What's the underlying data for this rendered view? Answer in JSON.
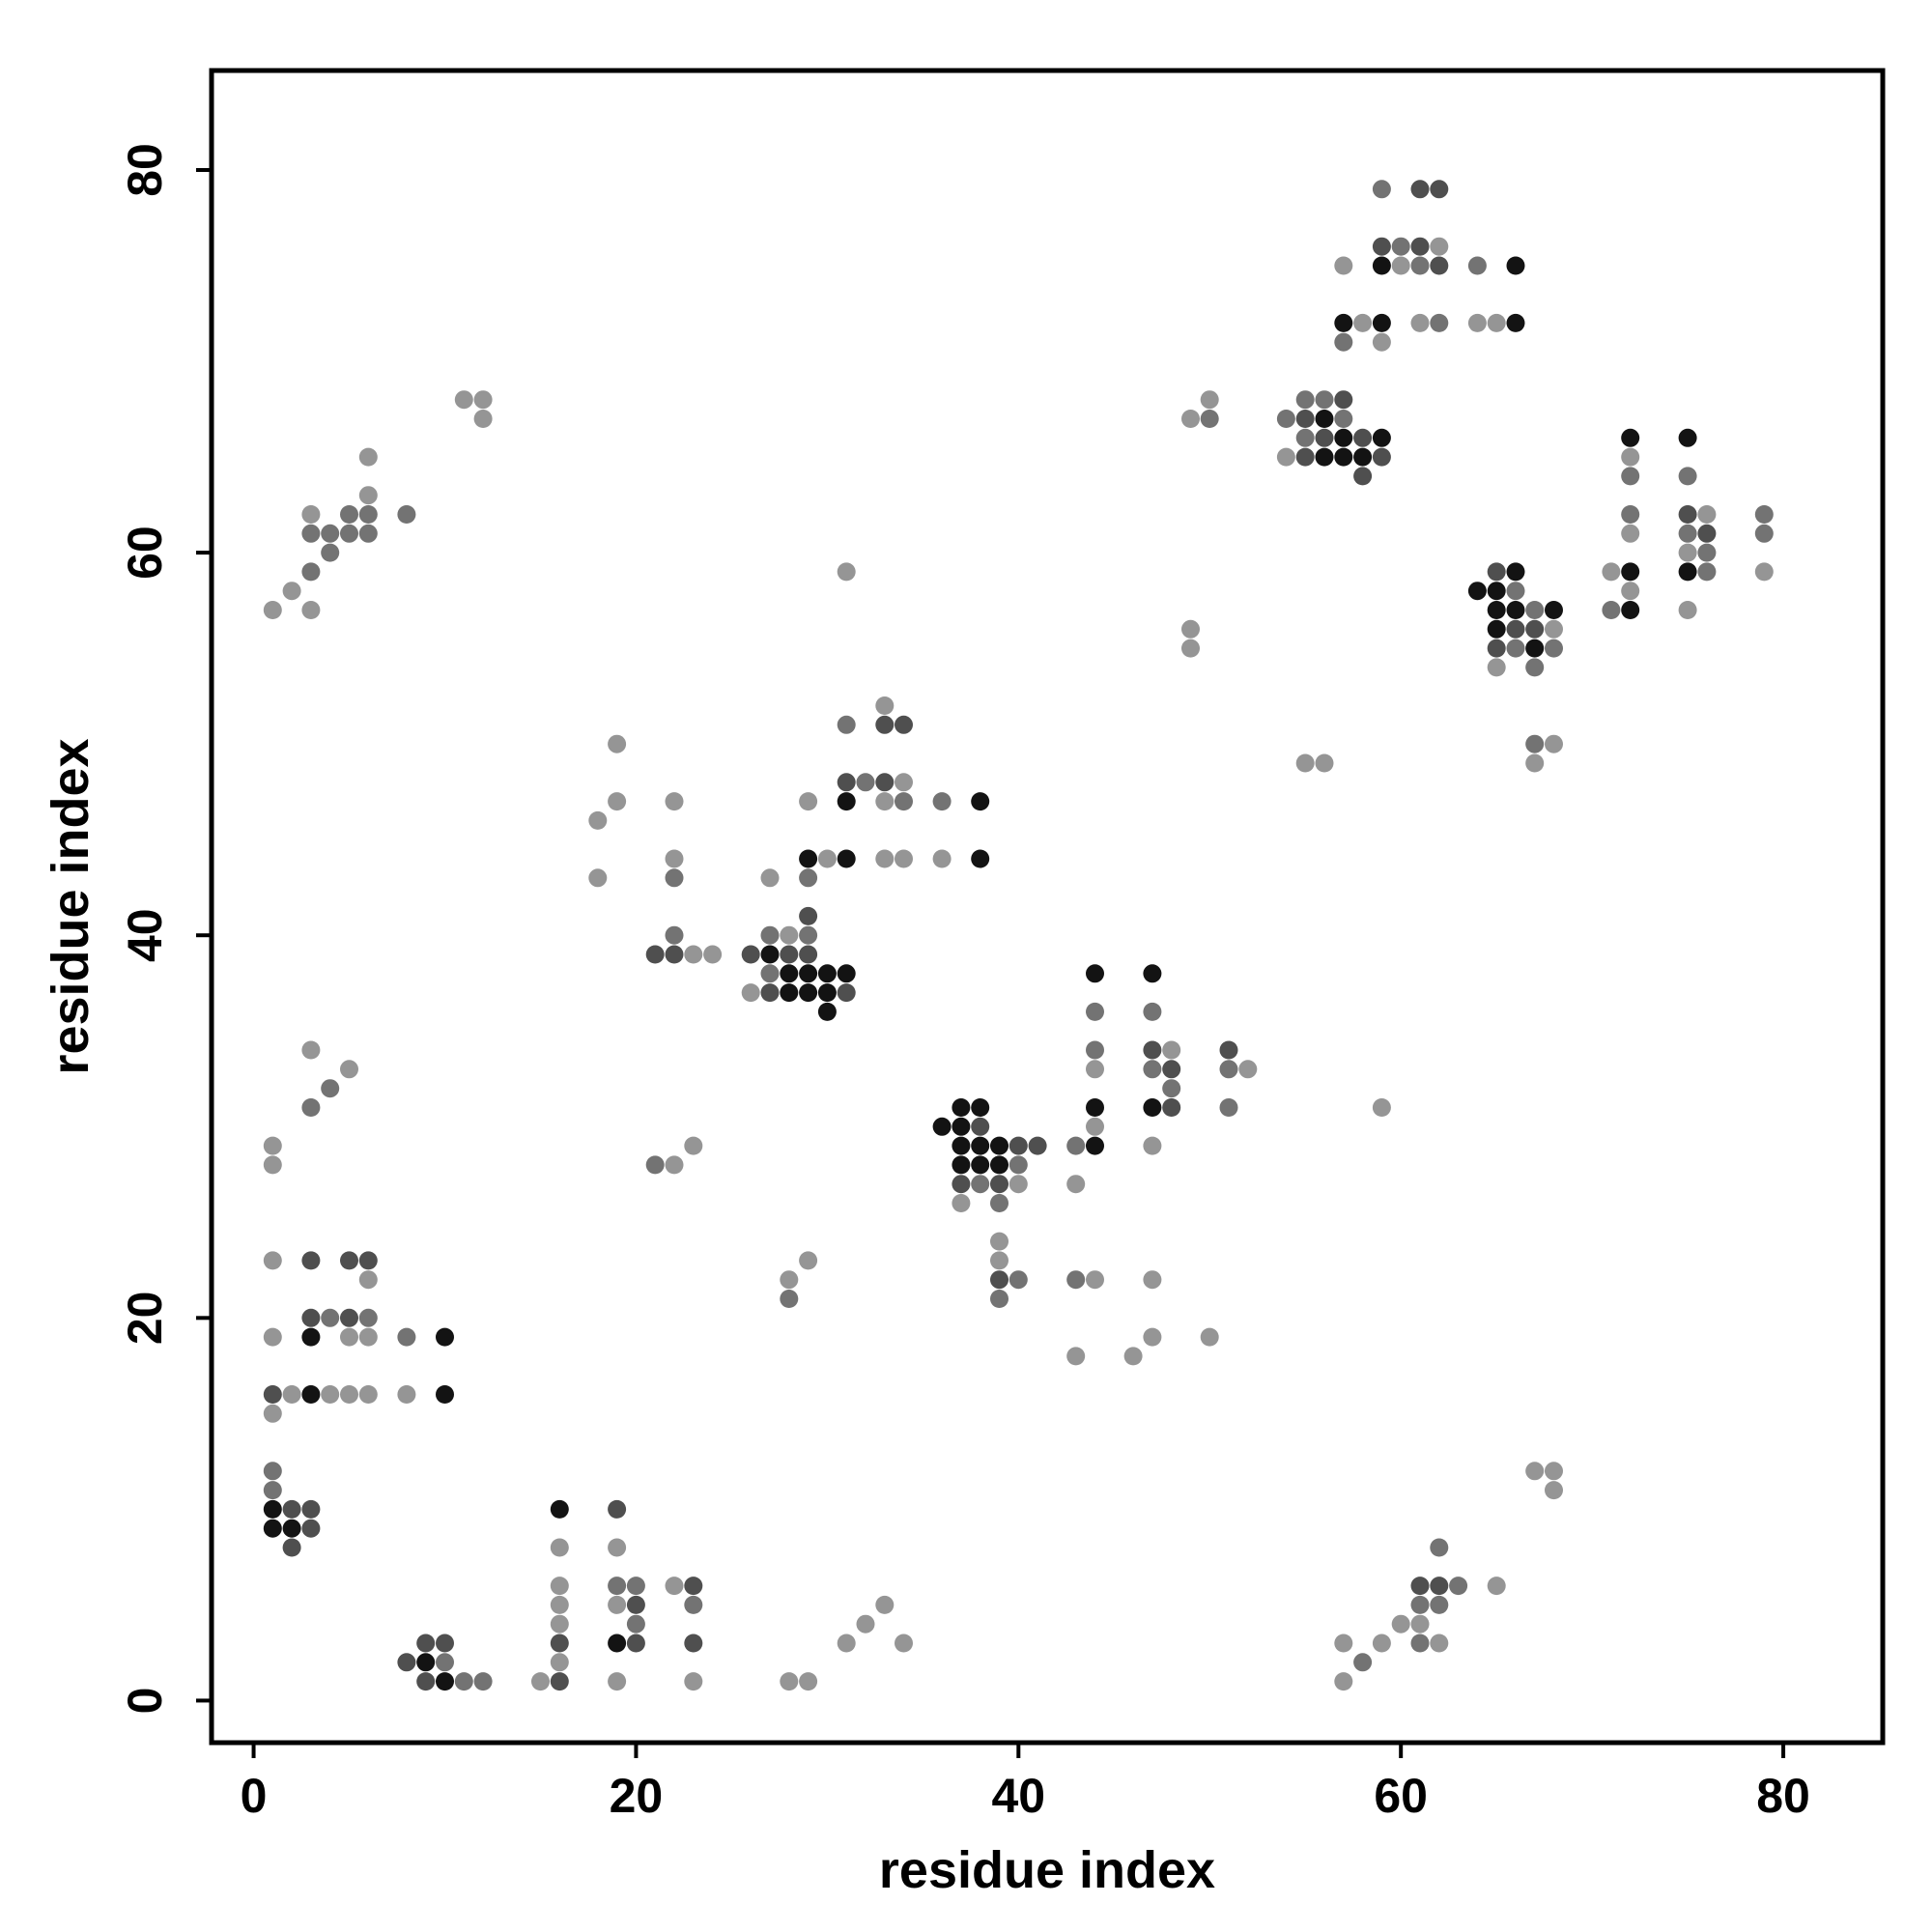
{
  "chart_data": {
    "type": "scatter",
    "xlabel": "residue index",
    "ylabel": "residue index",
    "xlim": [
      -2.2,
      85.2
    ],
    "ylim": [
      -2.2,
      85.2
    ],
    "xticks": [
      0,
      20,
      40,
      60,
      80
    ],
    "yticks": [
      0,
      20,
      40,
      60,
      80
    ],
    "grid": false,
    "shade_colors": {
      "1": "#959595",
      "2": "#737373",
      "3": "#4f4f4f",
      "4": "#131313"
    },
    "points_note": "each point: [x, y, shade] where shade 1=light gray ... 4=black",
    "points": [
      [
        1,
        57,
        1
      ],
      [
        2,
        58,
        1
      ],
      [
        3,
        57,
        1
      ],
      [
        3,
        59,
        2
      ],
      [
        3,
        61,
        2
      ],
      [
        3,
        62,
        1
      ],
      [
        4,
        60,
        2
      ],
      [
        4,
        61,
        2
      ],
      [
        5,
        61,
        2
      ],
      [
        5,
        62,
        2
      ],
      [
        6,
        61,
        2
      ],
      [
        6,
        62,
        2
      ],
      [
        6,
        63,
        1
      ],
      [
        6,
        65,
        1
      ],
      [
        8,
        62,
        2
      ],
      [
        11,
        68,
        1
      ],
      [
        12,
        68,
        1
      ],
      [
        12,
        67,
        1
      ],
      [
        1,
        29,
        1
      ],
      [
        1,
        28,
        1
      ],
      [
        3,
        34,
        1
      ],
      [
        3,
        31,
        2
      ],
      [
        4,
        32,
        2
      ],
      [
        5,
        33,
        1
      ],
      [
        1,
        23,
        1
      ],
      [
        3,
        23,
        3
      ],
      [
        5,
        23,
        3
      ],
      [
        6,
        23,
        3
      ],
      [
        6,
        22,
        1
      ],
      [
        1,
        19,
        1
      ],
      [
        3,
        20,
        3
      ],
      [
        3,
        19,
        4
      ],
      [
        4,
        20,
        2
      ],
      [
        5,
        20,
        3
      ],
      [
        5,
        19,
        1
      ],
      [
        6,
        20,
        2
      ],
      [
        6,
        19,
        1
      ],
      [
        8,
        19,
        2
      ],
      [
        10,
        19,
        4
      ],
      [
        1,
        16,
        3
      ],
      [
        1,
        15,
        1
      ],
      [
        2,
        16,
        1
      ],
      [
        3,
        16,
        4
      ],
      [
        4,
        16,
        1
      ],
      [
        5,
        16,
        1
      ],
      [
        6,
        16,
        1
      ],
      [
        8,
        16,
        1
      ],
      [
        10,
        16,
        4
      ],
      [
        1,
        12,
        2
      ],
      [
        1,
        11,
        2
      ],
      [
        1,
        10,
        4
      ],
      [
        1,
        9,
        4
      ],
      [
        2,
        10,
        3
      ],
      [
        2,
        9,
        4
      ],
      [
        2,
        8,
        3
      ],
      [
        3,
        10,
        3
      ],
      [
        3,
        9,
        3
      ],
      [
        8,
        2,
        3
      ],
      [
        9,
        3,
        3
      ],
      [
        9,
        2,
        4
      ],
      [
        9,
        1,
        3
      ],
      [
        10,
        3,
        3
      ],
      [
        10,
        2,
        2
      ],
      [
        10,
        1,
        4
      ],
      [
        11,
        1,
        2
      ],
      [
        12,
        1,
        2
      ],
      [
        15,
        1,
        1
      ],
      [
        16,
        10,
        4
      ],
      [
        16,
        8,
        1
      ],
      [
        16,
        6,
        1
      ],
      [
        16,
        5,
        1
      ],
      [
        16,
        4,
        1
      ],
      [
        16,
        3,
        3
      ],
      [
        16,
        2,
        1
      ],
      [
        16,
        1,
        3
      ],
      [
        19,
        10,
        3
      ],
      [
        19,
        8,
        1
      ],
      [
        19,
        6,
        2
      ],
      [
        19,
        5,
        1
      ],
      [
        19,
        3,
        4
      ],
      [
        19,
        1,
        1
      ],
      [
        20,
        6,
        2
      ],
      [
        20,
        5,
        3
      ],
      [
        20,
        4,
        2
      ],
      [
        20,
        3,
        3
      ],
      [
        22,
        6,
        1
      ],
      [
        23,
        6,
        3
      ],
      [
        23,
        5,
        2
      ],
      [
        23,
        3,
        3
      ],
      [
        23,
        1,
        1
      ],
      [
        28,
        1,
        1
      ],
      [
        29,
        1,
        1
      ],
      [
        31,
        3,
        1
      ],
      [
        32,
        4,
        1
      ],
      [
        33,
        5,
        1
      ],
      [
        34,
        3,
        1
      ],
      [
        18,
        46,
        1
      ],
      [
        18,
        43,
        1
      ],
      [
        19,
        50,
        1
      ],
      [
        19,
        47,
        1
      ],
      [
        22,
        47,
        1
      ],
      [
        22,
        44,
        1
      ],
      [
        22,
        43,
        2
      ],
      [
        22,
        40,
        2
      ],
      [
        21,
        39,
        3
      ],
      [
        22,
        39,
        3
      ],
      [
        23,
        39,
        1
      ],
      [
        24,
        39,
        1
      ],
      [
        21,
        28,
        2
      ],
      [
        22,
        28,
        1
      ],
      [
        23,
        29,
        1
      ],
      [
        28,
        22,
        1
      ],
      [
        28,
        21,
        2
      ],
      [
        29,
        23,
        1
      ],
      [
        27,
        43,
        1
      ],
      [
        29,
        47,
        1
      ],
      [
        29,
        44,
        4
      ],
      [
        29,
        43,
        2
      ],
      [
        30,
        44,
        1
      ],
      [
        31,
        51,
        2
      ],
      [
        31,
        48,
        3
      ],
      [
        31,
        47,
        4
      ],
      [
        31,
        44,
        4
      ],
      [
        32,
        48,
        2
      ],
      [
        33,
        52,
        1
      ],
      [
        33,
        51,
        3
      ],
      [
        33,
        48,
        3
      ],
      [
        33,
        47,
        1
      ],
      [
        33,
        44,
        1
      ],
      [
        34,
        51,
        3
      ],
      [
        34,
        48,
        1
      ],
      [
        34,
        47,
        2
      ],
      [
        34,
        44,
        1
      ],
      [
        36,
        47,
        2
      ],
      [
        36,
        44,
        1
      ],
      [
        38,
        47,
        4
      ],
      [
        38,
        44,
        4
      ],
      [
        26,
        39,
        3
      ],
      [
        26,
        37,
        1
      ],
      [
        27,
        40,
        2
      ],
      [
        27,
        39,
        4
      ],
      [
        27,
        38,
        2
      ],
      [
        27,
        37,
        3
      ],
      [
        28,
        40,
        1
      ],
      [
        28,
        39,
        3
      ],
      [
        28,
        38,
        4
      ],
      [
        28,
        37,
        4
      ],
      [
        29,
        41,
        3
      ],
      [
        29,
        40,
        2
      ],
      [
        29,
        39,
        3
      ],
      [
        29,
        38,
        4
      ],
      [
        29,
        37,
        4
      ],
      [
        30,
        38,
        4
      ],
      [
        30,
        37,
        4
      ],
      [
        30,
        36,
        4
      ],
      [
        31,
        38,
        4
      ],
      [
        31,
        37,
        3
      ],
      [
        31,
        59,
        1
      ],
      [
        36,
        30,
        4
      ],
      [
        37,
        31,
        4
      ],
      [
        37,
        30,
        4
      ],
      [
        37,
        29,
        4
      ],
      [
        37,
        28,
        4
      ],
      [
        37,
        27,
        3
      ],
      [
        37,
        26,
        1
      ],
      [
        38,
        31,
        4
      ],
      [
        38,
        30,
        3
      ],
      [
        38,
        29,
        4
      ],
      [
        38,
        28,
        4
      ],
      [
        38,
        27,
        2
      ],
      [
        39,
        29,
        4
      ],
      [
        39,
        28,
        4
      ],
      [
        39,
        27,
        3
      ],
      [
        39,
        26,
        2
      ],
      [
        40,
        29,
        3
      ],
      [
        40,
        28,
        2
      ],
      [
        40,
        27,
        1
      ],
      [
        41,
        29,
        3
      ],
      [
        39,
        24,
        1
      ],
      [
        39,
        23,
        1
      ],
      [
        39,
        22,
        3
      ],
      [
        39,
        21,
        2
      ],
      [
        40,
        22,
        2
      ],
      [
        43,
        27,
        1
      ],
      [
        43,
        22,
        2
      ],
      [
        44,
        22,
        1
      ],
      [
        43,
        18,
        1
      ],
      [
        46,
        18,
        1
      ],
      [
        47,
        22,
        1
      ],
      [
        47,
        19,
        1
      ],
      [
        50,
        19,
        1
      ],
      [
        43,
        29,
        2
      ],
      [
        44,
        38,
        4
      ],
      [
        44,
        36,
        2
      ],
      [
        44,
        34,
        2
      ],
      [
        44,
        33,
        1
      ],
      [
        44,
        31,
        4
      ],
      [
        44,
        30,
        1
      ],
      [
        44,
        29,
        4
      ],
      [
        47,
        38,
        4
      ],
      [
        47,
        36,
        2
      ],
      [
        47,
        34,
        3
      ],
      [
        47,
        33,
        2
      ],
      [
        47,
        31,
        4
      ],
      [
        47,
        29,
        1
      ],
      [
        48,
        34,
        1
      ],
      [
        48,
        33,
        3
      ],
      [
        48,
        32,
        2
      ],
      [
        48,
        31,
        3
      ],
      [
        51,
        34,
        3
      ],
      [
        51,
        33,
        2
      ],
      [
        51,
        31,
        2
      ],
      [
        52,
        33,
        1
      ],
      [
        59,
        31,
        1
      ],
      [
        49,
        67,
        1
      ],
      [
        50,
        68,
        1
      ],
      [
        50,
        67,
        2
      ],
      [
        49,
        56,
        1
      ],
      [
        49,
        55,
        1
      ],
      [
        55,
        49,
        1
      ],
      [
        56,
        49,
        1
      ],
      [
        54,
        67,
        2
      ],
      [
        54,
        65,
        1
      ],
      [
        55,
        68,
        2
      ],
      [
        55,
        67,
        3
      ],
      [
        55,
        66,
        2
      ],
      [
        55,
        65,
        3
      ],
      [
        56,
        68,
        2
      ],
      [
        56,
        67,
        4
      ],
      [
        56,
        66,
        3
      ],
      [
        56,
        65,
        4
      ],
      [
        57,
        68,
        3
      ],
      [
        57,
        67,
        2
      ],
      [
        57,
        66,
        4
      ],
      [
        57,
        65,
        4
      ],
      [
        58,
        66,
        3
      ],
      [
        58,
        65,
        4
      ],
      [
        58,
        64,
        3
      ],
      [
        59,
        66,
        4
      ],
      [
        59,
        65,
        3
      ],
      [
        57,
        75,
        1
      ],
      [
        57,
        72,
        4
      ],
      [
        57,
        71,
        2
      ],
      [
        58,
        72,
        1
      ],
      [
        59,
        79,
        2
      ],
      [
        59,
        76,
        3
      ],
      [
        59,
        75,
        4
      ],
      [
        59,
        72,
        4
      ],
      [
        59,
        71,
        1
      ],
      [
        60,
        76,
        2
      ],
      [
        60,
        75,
        1
      ],
      [
        61,
        79,
        3
      ],
      [
        61,
        76,
        3
      ],
      [
        61,
        75,
        2
      ],
      [
        61,
        72,
        1
      ],
      [
        62,
        79,
        3
      ],
      [
        62,
        76,
        1
      ],
      [
        62,
        75,
        3
      ],
      [
        62,
        72,
        2
      ],
      [
        64,
        75,
        2
      ],
      [
        64,
        72,
        1
      ],
      [
        65,
        72,
        1
      ],
      [
        66,
        75,
        4
      ],
      [
        66,
        72,
        4
      ],
      [
        64,
        58,
        4
      ],
      [
        65,
        59,
        3
      ],
      [
        65,
        58,
        4
      ],
      [
        65,
        57,
        4
      ],
      [
        65,
        56,
        4
      ],
      [
        65,
        55,
        3
      ],
      [
        65,
        54,
        1
      ],
      [
        66,
        59,
        4
      ],
      [
        66,
        58,
        2
      ],
      [
        66,
        57,
        4
      ],
      [
        66,
        56,
        3
      ],
      [
        66,
        55,
        2
      ],
      [
        67,
        57,
        2
      ],
      [
        67,
        56,
        3
      ],
      [
        67,
        55,
        4
      ],
      [
        67,
        54,
        2
      ],
      [
        68,
        57,
        4
      ],
      [
        68,
        56,
        1
      ],
      [
        68,
        55,
        2
      ],
      [
        67,
        50,
        2
      ],
      [
        67,
        49,
        1
      ],
      [
        68,
        50,
        1
      ],
      [
        71,
        59,
        1
      ],
      [
        71,
        57,
        2
      ],
      [
        72,
        66,
        4
      ],
      [
        72,
        65,
        1
      ],
      [
        72,
        64,
        2
      ],
      [
        72,
        62,
        2
      ],
      [
        72,
        61,
        1
      ],
      [
        72,
        59,
        4
      ],
      [
        72,
        58,
        1
      ],
      [
        72,
        57,
        4
      ],
      [
        75,
        66,
        4
      ],
      [
        75,
        64,
        2
      ],
      [
        75,
        62,
        3
      ],
      [
        75,
        61,
        2
      ],
      [
        75,
        60,
        1
      ],
      [
        75,
        59,
        4
      ],
      [
        75,
        57,
        1
      ],
      [
        76,
        62,
        1
      ],
      [
        76,
        61,
        3
      ],
      [
        76,
        60,
        2
      ],
      [
        76,
        59,
        2
      ],
      [
        79,
        62,
        2
      ],
      [
        79,
        61,
        2
      ],
      [
        79,
        59,
        1
      ],
      [
        57,
        3,
        1
      ],
      [
        57,
        1,
        1
      ],
      [
        58,
        2,
        2
      ],
      [
        59,
        3,
        1
      ],
      [
        60,
        4,
        1
      ],
      [
        61,
        6,
        3
      ],
      [
        61,
        5,
        2
      ],
      [
        61,
        4,
        1
      ],
      [
        61,
        3,
        2
      ],
      [
        62,
        8,
        2
      ],
      [
        62,
        6,
        3
      ],
      [
        62,
        5,
        2
      ],
      [
        62,
        3,
        1
      ],
      [
        63,
        6,
        2
      ],
      [
        65,
        6,
        1
      ],
      [
        67,
        12,
        1
      ],
      [
        68,
        12,
        1
      ],
      [
        68,
        11,
        1
      ]
    ]
  }
}
